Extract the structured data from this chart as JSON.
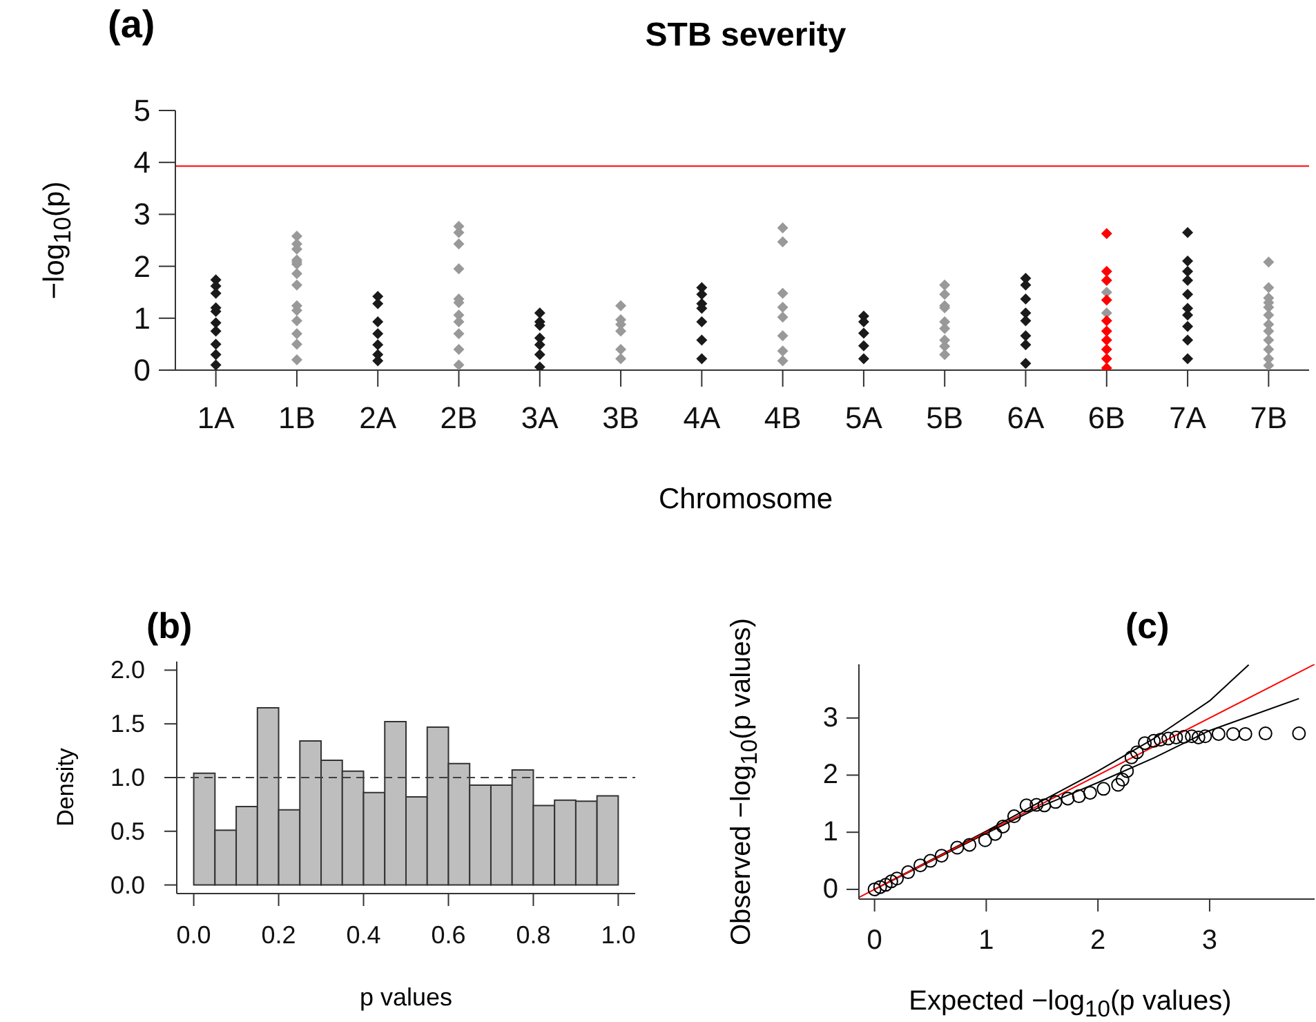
{
  "chart_data": [
    {
      "type": "scatter",
      "title": "STB severity",
      "annotations": [
        "(a)"
      ],
      "xlabel": "Chromosome",
      "ylabel": "−log$_{10}$(p)",
      "marker": "diamond",
      "categories": [
        "1A",
        "1B",
        "2A",
        "2B",
        "3A",
        "3B",
        "4A",
        "4B",
        "5A",
        "5B",
        "6A",
        "6B",
        "7A",
        "7B"
      ],
      "ylim": [
        0,
        5
      ],
      "yticks": [
        0,
        1,
        2,
        3,
        4,
        5
      ],
      "ref_lines": [
        {
          "axis": "y",
          "value": 3.93,
          "color": "#ff0000"
        }
      ],
      "series": [
        {
          "color": "#1a1a1a",
          "x": [
            "1A",
            "1A",
            "1A",
            "1A",
            "1A",
            "1A",
            "1A",
            "1A",
            "1A",
            "1A",
            "2A",
            "2A",
            "2A",
            "2A",
            "2A",
            "2A",
            "2A",
            "3A",
            "3A",
            "3A",
            "3A",
            "3A",
            "3A",
            "3A",
            "4A",
            "4A",
            "4A",
            "4A",
            "4A",
            "4A",
            "4A",
            "5A",
            "5A",
            "5A",
            "5A",
            "5A",
            "6A",
            "6A",
            "6A",
            "6A",
            "6A",
            "6A",
            "6A",
            "6A",
            "7A",
            "7A",
            "7A",
            "7A",
            "7A",
            "7A",
            "7A",
            "7A",
            "7A",
            "7A"
          ],
          "values": [
            1.74,
            1.62,
            1.48,
            1.2,
            1.13,
            0.91,
            0.75,
            0.5,
            0.3,
            0.1,
            1.42,
            1.28,
            0.93,
            0.7,
            0.49,
            0.3,
            0.18,
            1.1,
            0.93,
            0.86,
            0.62,
            0.49,
            0.3,
            0.06,
            1.59,
            1.46,
            1.28,
            1.19,
            0.93,
            0.58,
            0.22,
            1.04,
            0.93,
            0.71,
            0.47,
            0.22,
            1.77,
            1.64,
            1.37,
            1.1,
            0.95,
            0.66,
            0.49,
            0.13,
            2.65,
            2.1,
            1.9,
            1.73,
            1.46,
            1.19,
            1.06,
            0.84,
            0.58,
            0.22
          ]
        },
        {
          "color": "#999999",
          "x": [
            "1B",
            "1B",
            "1B",
            "1B",
            "1B",
            "1B",
            "1B",
            "1B",
            "1B",
            "1B",
            "1B",
            "1B",
            "1B",
            "1B",
            "2B",
            "2B",
            "2B",
            "2B",
            "2B",
            "2B",
            "2B",
            "2B",
            "2B",
            "2B",
            "2B",
            "3B",
            "3B",
            "3B",
            "3B",
            "3B",
            "3B",
            "4B",
            "4B",
            "4B",
            "4B",
            "4B",
            "4B",
            "4B",
            "4B",
            "5B",
            "5B",
            "5B",
            "5B",
            "5B",
            "5B",
            "5B",
            "5B",
            "5B",
            "6B",
            "6B",
            "7B",
            "7B",
            "7B",
            "7B",
            "7B",
            "7B",
            "7B",
            "7B",
            "7B",
            "7B",
            "7B",
            "7B"
          ],
          "values": [
            2.58,
            2.43,
            2.33,
            2.12,
            2.08,
            2.04,
            1.86,
            1.64,
            1.24,
            1.15,
            0.95,
            0.7,
            0.5,
            0.2,
            2.77,
            2.65,
            2.43,
            1.95,
            1.37,
            1.3,
            1.06,
            0.93,
            0.7,
            0.4,
            0.1,
            1.24,
            0.97,
            0.88,
            0.75,
            0.4,
            0.22,
            2.74,
            2.47,
            1.48,
            1.21,
            1.02,
            0.66,
            0.37,
            0.18,
            1.64,
            1.46,
            1.24,
            1.2,
            0.93,
            0.8,
            0.58,
            0.46,
            0.3,
            1.5,
            1.1,
            2.08,
            1.59,
            1.39,
            1.3,
            1.21,
            1.06,
            0.88,
            0.75,
            0.58,
            0.4,
            0.22,
            0.09
          ]
        },
        {
          "color": "#ff0000",
          "x": [
            "6B",
            "6B",
            "6B",
            "6B",
            "6B",
            "6B",
            "6B",
            "6B",
            "6B",
            "6B"
          ],
          "values": [
            2.63,
            1.9,
            1.73,
            1.35,
            0.95,
            0.75,
            0.58,
            0.4,
            0.22,
            0.04
          ]
        }
      ]
    },
    {
      "type": "histogram",
      "annotations": [
        "(b)"
      ],
      "xlabel": "p values",
      "ylabel": "Density",
      "color": "#bebebe",
      "bins": [
        0,
        0.05,
        0.1,
        0.15,
        0.2,
        0.25,
        0.3,
        0.35,
        0.4,
        0.45,
        0.5,
        0.55,
        0.6,
        0.65,
        0.7,
        0.75,
        0.8,
        0.85,
        0.9,
        0.95,
        1.0
      ],
      "values": [
        1.04,
        0.51,
        0.73,
        1.65,
        0.7,
        1.34,
        1.16,
        1.06,
        0.86,
        1.52,
        0.82,
        1.47,
        1.13,
        0.93,
        0.93,
        1.07,
        0.74,
        0.79,
        0.78,
        0.83
      ],
      "xlim": [
        -0.04,
        1.04
      ],
      "xticks": [
        {
          "value": 0,
          "label": "0.0"
        },
        0.2,
        0.4,
        0.6,
        0.8,
        {
          "value": 1,
          "label": "1.0"
        }
      ],
      "ylim": [
        -0.08,
        2.08
      ],
      "yticks": [
        {
          "value": 0,
          "label": "0.0"
        },
        0.5,
        {
          "value": 1,
          "label": "1.0"
        },
        1.5,
        {
          "value": 2,
          "label": "2.0"
        }
      ],
      "ref_lines": [
        {
          "axis": "y",
          "value": 1.0,
          "color": "#404040",
          "line_style": "dashed"
        }
      ]
    },
    {
      "type": "scatter",
      "annotations": [
        "(c)"
      ],
      "xlabel": "Expected  −log$_{10}$(p values)",
      "ylabel": "Observed  −log$_{10}$(p values)",
      "marker": "circle",
      "xlim": [
        -0.14,
        3.94
      ],
      "ylim": [
        -0.17,
        3.94
      ],
      "xticks": [
        0,
        1,
        2,
        3
      ],
      "yticks": [
        0,
        1,
        2,
        3
      ],
      "series": [
        {
          "type": "line",
          "marker": "none",
          "color": "#000000",
          "x": [
            0,
            1,
            1.5,
            2,
            2.5,
            3,
            3.35
          ],
          "values": [
            0,
            1.02,
            1.55,
            2.07,
            2.64,
            3.3,
            3.93
          ]
        },
        {
          "type": "line",
          "marker": "none",
          "color": "#000000",
          "x": [
            0,
            1,
            1.5,
            2,
            2.5,
            3,
            3.8
          ],
          "values": [
            0,
            0.98,
            1.46,
            1.87,
            2.3,
            2.78,
            3.34
          ]
        },
        {
          "type": "scatter",
          "color": "#000000",
          "x": [
            0,
            0.05,
            0.1,
            0.15,
            0.2,
            0.3,
            0.41,
            0.5,
            0.6,
            0.74,
            0.85,
            0.99,
            1.08,
            1.15,
            1.25,
            1.36,
            1.45,
            1.52,
            1.62,
            1.73,
            1.83,
            1.93,
            2.05,
            2.18,
            2.22,
            2.26,
            2.3,
            2.35,
            2.42,
            2.5,
            2.56,
            2.63,
            2.7,
            2.77,
            2.84,
            2.9,
            2.96,
            3.08,
            3.21,
            3.32,
            3.5,
            3.8
          ],
          "values": [
            0,
            0.04,
            0.08,
            0.14,
            0.19,
            0.3,
            0.42,
            0.5,
            0.59,
            0.73,
            0.78,
            0.86,
            0.97,
            1.1,
            1.28,
            1.47,
            1.48,
            1.47,
            1.53,
            1.59,
            1.63,
            1.69,
            1.76,
            1.83,
            1.92,
            2.07,
            2.31,
            2.4,
            2.56,
            2.6,
            2.62,
            2.64,
            2.66,
            2.67,
            2.68,
            2.66,
            2.68,
            2.72,
            2.72,
            2.72,
            2.73,
            2.73
          ]
        },
        {
          "type": "line",
          "marker": "none",
          "color": "#ff0000",
          "x": [
            -0.14,
            3.94
          ],
          "values": [
            -0.14,
            3.94
          ]
        }
      ]
    }
  ]
}
